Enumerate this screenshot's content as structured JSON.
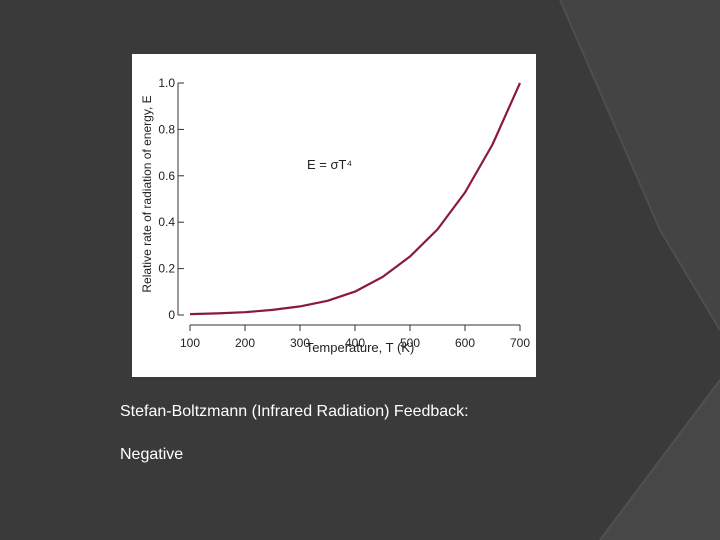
{
  "slide": {
    "caption_line1": "Stefan-Boltzmann (Infrared Radiation) Feedback:",
    "caption_line2": "Negative",
    "background_color": "#3a3a3a"
  },
  "chart_data": {
    "type": "line",
    "title": "",
    "xlabel": "Temperature, T (K)",
    "ylabel": "Relative rate of radiation of energy, E",
    "annotation": "E = σT⁴",
    "xlim": [
      100,
      700
    ],
    "ylim": [
      0,
      1.0
    ],
    "x_ticks": [
      100,
      200,
      300,
      400,
      500,
      600,
      700
    ],
    "y_ticks": [
      0,
      0.2,
      0.4,
      0.6,
      0.8,
      1.0
    ],
    "y_tick_labels": [
      "0",
      "0.2",
      "0.4",
      "0.6",
      "0.8",
      "1.0"
    ],
    "grid": false,
    "series": [
      {
        "color": "#8b1a3a",
        "x": [
          100,
          150,
          200,
          250,
          300,
          350,
          400,
          450,
          500,
          550,
          600,
          650,
          700
        ],
        "y": [
          0.004,
          0.007,
          0.012,
          0.022,
          0.037,
          0.061,
          0.101,
          0.164,
          0.252,
          0.369,
          0.528,
          0.735,
          1.0
        ]
      }
    ]
  }
}
